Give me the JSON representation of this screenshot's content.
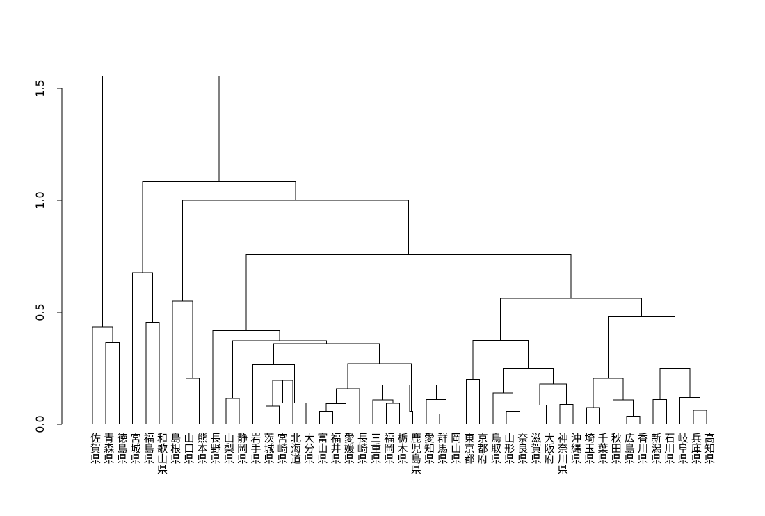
{
  "chart_data": {
    "type": "dendrogram",
    "title": "",
    "xlabel": "",
    "ylabel": "",
    "ylim": [
      0,
      1.6
    ],
    "yticks": [
      0.0,
      0.5,
      1.0,
      1.5
    ],
    "ytick_labels": [
      "0.0",
      "0.5",
      "1.0",
      "1.5"
    ],
    "leaves": [
      "佐賀県",
      "青森県",
      "徳島県",
      "宮城県",
      "福島県",
      "和歌山県",
      "島根県",
      "山口県",
      "熊本県",
      "長野県",
      "山梨県",
      "静岡県",
      "岩手県",
      "茨城県",
      "宮崎県",
      "北海道",
      "大分県",
      "富山県",
      "福井県",
      "愛媛県",
      "長崎県",
      "三重県",
      "福岡県",
      "栃木県",
      "鹿児島県",
      "愛知県",
      "群馬県",
      "岡山県",
      "東京都",
      "京都府",
      "鳥取県",
      "山形県",
      "奈良県",
      "滋賀県",
      "大阪府",
      "神奈川県",
      "沖縄県",
      "埼玉県",
      "千葉県",
      "秋田県",
      "広島県",
      "香川県",
      "新潟県",
      "石川県",
      "岐阜県",
      "兵庫県",
      "高知県"
    ],
    "merges": [
      {
        "a": "L:1",
        "b": "L:2",
        "height": 0.365
      },
      {
        "a": "L:0",
        "b": "M:0",
        "height": 0.435
      },
      {
        "a": "L:4",
        "b": "L:5",
        "height": 0.455
      },
      {
        "a": "L:3",
        "b": "M:2",
        "height": 0.677
      },
      {
        "a": "L:7",
        "b": "L:8",
        "height": 0.205
      },
      {
        "a": "L:6",
        "b": "M:4",
        "height": 0.55
      },
      {
        "a": "L:10",
        "b": "L:11",
        "height": 0.115
      },
      {
        "a": "L:13",
        "b": "L:14",
        "height": 0.08
      },
      {
        "a": "M:7",
        "b": "L:15",
        "height": 0.195
      },
      {
        "a": "M:8",
        "b": "L:16",
        "height": 0.095
      },
      {
        "a": "L:12",
        "b": "M:9",
        "height": 0.265
      },
      {
        "a": "L:17",
        "b": "L:18",
        "height": 0.058
      },
      {
        "a": "M:11",
        "b": "L:19",
        "height": 0.092
      },
      {
        "a": "M:12",
        "b": "L:20",
        "height": 0.158
      },
      {
        "a": "L:22",
        "b": "L:23",
        "height": 0.093
      },
      {
        "a": "L:21",
        "b": "M:14",
        "height": 0.108
      },
      {
        "a": "L:26",
        "b": "L:27",
        "height": 0.045
      },
      {
        "a": "L:25",
        "b": "M:16",
        "height": 0.11
      },
      {
        "a": "M:15",
        "b": "M:17",
        "height": 0.175
      },
      {
        "a": "L:24",
        "b": "M:18",
        "height": 0.058
      },
      {
        "a": "M:13",
        "b": "M:19",
        "height": 0.27
      },
      {
        "a": "M:10",
        "b": "M:20",
        "height": 0.36
      },
      {
        "a": "M:6",
        "b": "M:21",
        "height": 0.372
      },
      {
        "a": "L:9",
        "b": "M:22",
        "height": 0.418
      },
      {
        "a": "L:28",
        "b": "L:29",
        "height": 0.2
      },
      {
        "a": "L:31",
        "b": "L:32",
        "height": 0.058
      },
      {
        "a": "L:30",
        "b": "M:25",
        "height": 0.14
      },
      {
        "a": "L:33",
        "b": "L:34",
        "height": 0.085
      },
      {
        "a": "L:35",
        "b": "L:36",
        "height": 0.088
      },
      {
        "a": "M:27",
        "b": "M:28",
        "height": 0.18
      },
      {
        "a": "M:26",
        "b": "M:29",
        "height": 0.25
      },
      {
        "a": "M:24",
        "b": "M:30",
        "height": 0.375
      },
      {
        "a": "L:40",
        "b": "L:41",
        "height": 0.035
      },
      {
        "a": "L:39",
        "b": "M:32",
        "height": 0.108
      },
      {
        "a": "L:37",
        "b": "L:38",
        "height": 0.075
      },
      {
        "a": "M:34",
        "b": "M:33",
        "height": 0.205
      },
      {
        "a": "L:45",
        "b": "L:46",
        "height": 0.062
      },
      {
        "a": "L:44",
        "b": "M:36",
        "height": 0.12
      },
      {
        "a": "L:42",
        "b": "L:43",
        "height": 0.11
      },
      {
        "a": "M:38",
        "b": "M:37",
        "height": 0.25
      },
      {
        "a": "M:35",
        "b": "M:39",
        "height": 0.48
      },
      {
        "a": "M:31",
        "b": "M:40",
        "height": 0.562
      },
      {
        "a": "M:23",
        "b": "M:41",
        "height": 0.76
      },
      {
        "a": "M:5",
        "b": "M:42",
        "height": 1.0
      },
      {
        "a": "M:3",
        "b": "M:43",
        "height": 1.085
      },
      {
        "a": "M:1",
        "b": "M:44",
        "height": 1.555
      }
    ]
  }
}
